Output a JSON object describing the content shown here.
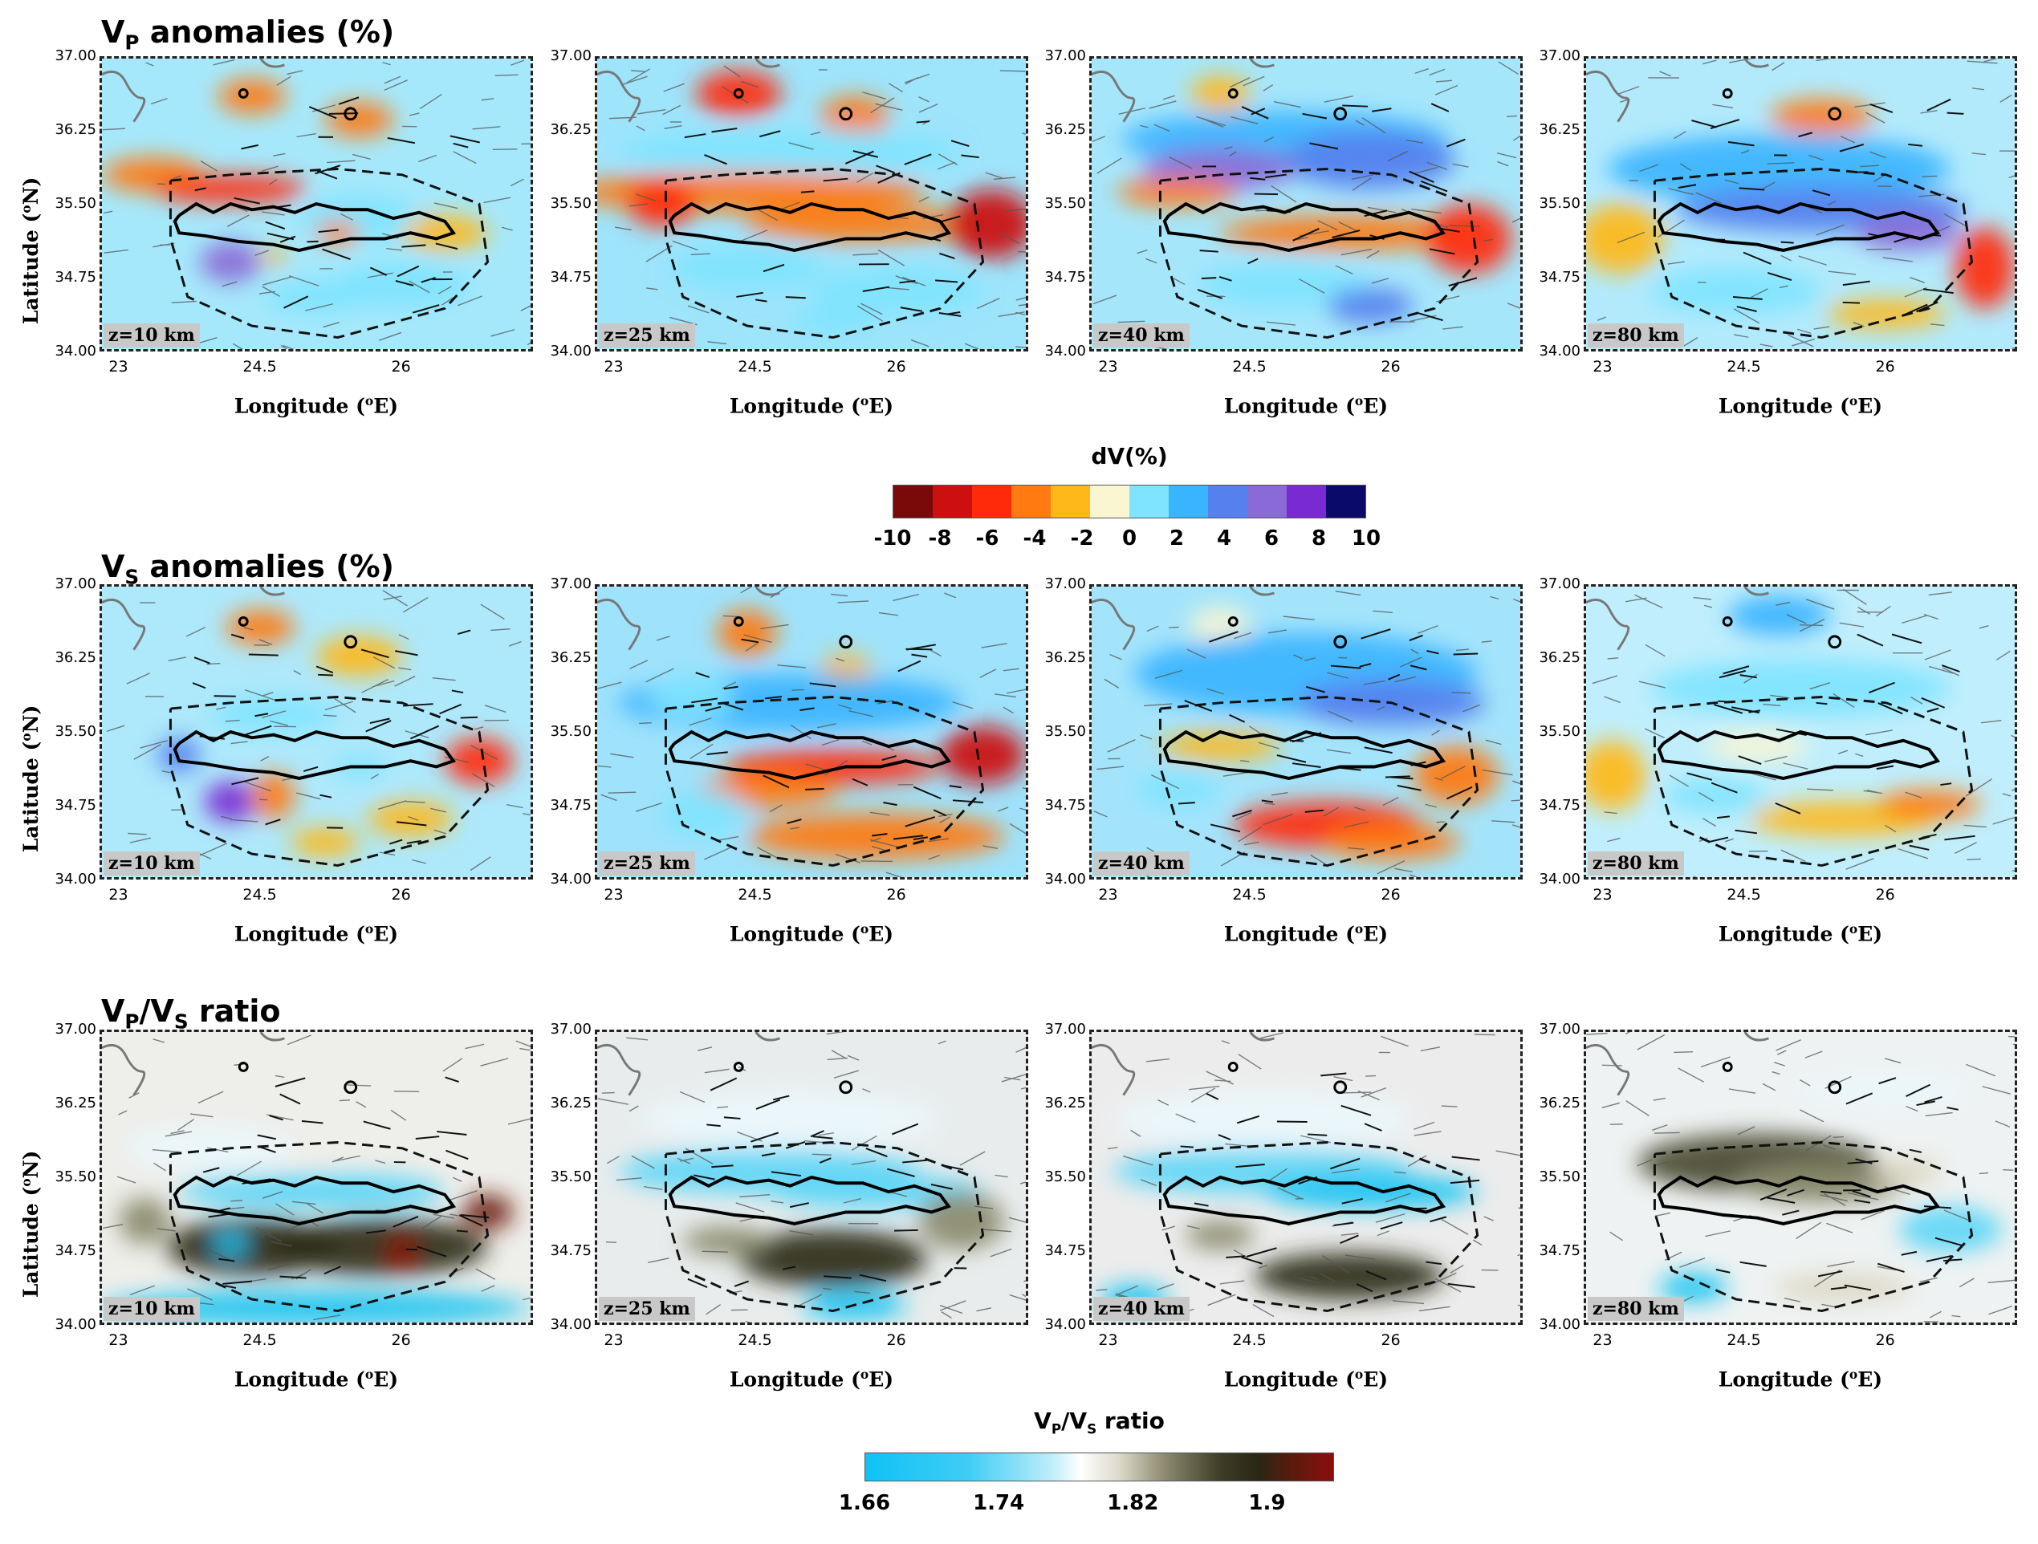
{
  "chart_data": {
    "type": "heatmap",
    "description_rows": [
      "Vp anomalies",
      "Vs anomalies",
      "Vp/Vs ratio"
    ],
    "rows": [
      {
        "title_main": "V",
        "title_sub": "P",
        "title_rest": " anomalies (%)",
        "kind": "dv"
      },
      {
        "title_main": "V",
        "title_sub": "S",
        "title_rest": " anomalies (%)",
        "kind": "dv"
      },
      {
        "title_main": "V",
        "title_sub": "P",
        "title_mid": "/V",
        "title_sub2": "S",
        "title_rest": " ratio",
        "kind": "ratio"
      }
    ],
    "depths": [
      "z=10 km",
      "z=25 km",
      "z=40 km",
      "z=80 km"
    ],
    "y_ticks": [
      "37.00",
      "36.25",
      "35.50",
      "34.75",
      "34.00"
    ],
    "x_ticks": [
      "23",
      "24.5",
      "26"
    ],
    "ylabel_prefix": "Latitude (",
    "ylabel_sup": "o",
    "ylabel_suffix": "N)",
    "xlabel_prefix": "Longitude (",
    "xlabel_sup": "o",
    "xlabel_suffix": "E)",
    "xlim": [
      22.8,
      27.4
    ],
    "ylim": [
      34.0,
      37.0
    ],
    "dv_colorbar": {
      "title": "dV(%)",
      "ticks": [
        "-10",
        "-8",
        "-6",
        "-4",
        "-2",
        "0",
        "2",
        "4",
        "6",
        "8",
        "10"
      ],
      "colors": [
        "#7a0a0a",
        "#cc1010",
        "#ff2a0a",
        "#ff7a10",
        "#ffb81a",
        "#fbf6d2",
        "#7fe4ff",
        "#39b4ff",
        "#5580ee",
        "#8a6ad6",
        "#7a2ad2",
        "#0a0a6a"
      ]
    },
    "ratio_colorbar": {
      "title_main": "V",
      "title_sub": "P",
      "title_mid": "/V",
      "title_sub2": "S",
      "title_rest": " ratio",
      "ticks": [
        "1.66",
        "1.74",
        "1.82",
        "1.9"
      ],
      "range": [
        1.66,
        1.94
      ]
    }
  }
}
